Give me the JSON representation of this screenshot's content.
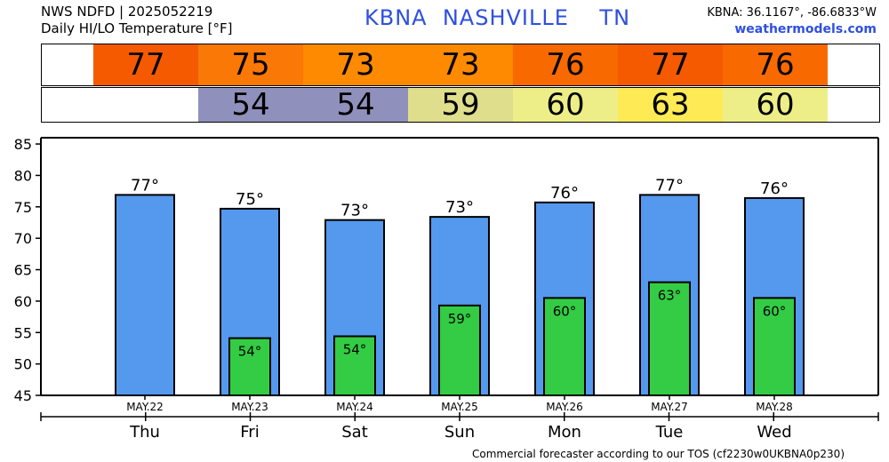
{
  "header": {
    "source_line": "NWS NDFD | 2025052219",
    "product_line": "Daily HI/LO Temperature [°F]",
    "station_code": "KBNA",
    "station_name": "NASHVILLE",
    "state": "TN",
    "coords": "KBNA: 36.1167°, -86.6833°W",
    "website": "weathermodels.com"
  },
  "hi_strip": [
    {
      "value": "77",
      "color": "#f55a00"
    },
    {
      "value": "75",
      "color": "#fa7805"
    },
    {
      "value": "73",
      "color": "#fd8a00"
    },
    {
      "value": "73",
      "color": "#fd8a00"
    },
    {
      "value": "76",
      "color": "#f86a00"
    },
    {
      "value": "77",
      "color": "#f55a00"
    },
    {
      "value": "76",
      "color": "#f86a00"
    }
  ],
  "lo_strip": [
    {
      "value": "",
      "color": "#ffffff"
    },
    {
      "value": "54",
      "color": "#9090bd"
    },
    {
      "value": "54",
      "color": "#9090bd"
    },
    {
      "value": "59",
      "color": "#dede8c"
    },
    {
      "value": "60",
      "color": "#eeee88"
    },
    {
      "value": "63",
      "color": "#fdea55"
    },
    {
      "value": "60",
      "color": "#eeee88"
    }
  ],
  "chart_data": {
    "type": "bar",
    "categories": [
      "Thu",
      "Fri",
      "Sat",
      "Sun",
      "Mon",
      "Tue",
      "Wed"
    ],
    "dates": [
      "MAY.22",
      "MAY.23",
      "MAY.24",
      "MAY.25",
      "MAY.26",
      "MAY.27",
      "MAY.28"
    ],
    "series": [
      {
        "values": [
          76.9,
          74.7,
          72.9,
          73.4,
          75.7,
          76.9,
          76.4
        ],
        "labels": [
          "77°",
          "75°",
          "73°",
          "73°",
          "76°",
          "77°",
          "76°"
        ],
        "color": "#5599ee"
      },
      {
        "values": [
          null,
          54.1,
          54.4,
          59.3,
          60.5,
          63.0,
          60.5
        ],
        "labels": [
          "",
          "54°",
          "54°",
          "59°",
          "60°",
          "63°",
          "60°"
        ],
        "color": "#33cc44"
      }
    ],
    "yticks": [
      45,
      50,
      55,
      60,
      65,
      70,
      75,
      80,
      85
    ],
    "ylim": [
      45,
      86
    ],
    "grid": false
  },
  "footer": "Commercial forecaster according to our TOS (cf2230w0UKBNA0p230)"
}
